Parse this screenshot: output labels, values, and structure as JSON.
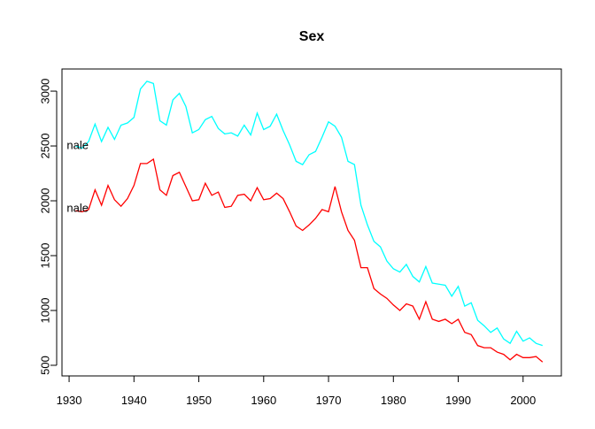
{
  "chart_data": {
    "type": "line",
    "title": "Sex",
    "x": [
      1931,
      1932,
      1933,
      1934,
      1935,
      1936,
      1937,
      1938,
      1939,
      1940,
      1941,
      1942,
      1943,
      1944,
      1945,
      1946,
      1947,
      1948,
      1949,
      1950,
      1951,
      1952,
      1953,
      1954,
      1955,
      1956,
      1957,
      1958,
      1959,
      1960,
      1961,
      1962,
      1963,
      1964,
      1965,
      1966,
      1967,
      1968,
      1969,
      1970,
      1971,
      1972,
      1973,
      1974,
      1975,
      1976,
      1977,
      1978,
      1979,
      1980,
      1981,
      1982,
      1983,
      1984,
      1985,
      1986,
      1987,
      1988,
      1989,
      1990,
      1991,
      1992,
      1993,
      1994,
      1995,
      1996,
      1997,
      1998,
      1999,
      2000,
      2001,
      2002,
      2003
    ],
    "series": [
      {
        "color": "#00ffff",
        "values": [
          2500,
          2480,
          2540,
          2700,
          2540,
          2670,
          2560,
          2690,
          2710,
          2760,
          3020,
          3090,
          3070,
          2730,
          2690,
          2920,
          2980,
          2860,
          2620,
          2650,
          2740,
          2770,
          2660,
          2610,
          2620,
          2590,
          2690,
          2600,
          2800,
          2650,
          2680,
          2790,
          2640,
          2510,
          2360,
          2330,
          2420,
          2450,
          2580,
          2720,
          2680,
          2580,
          2360,
          2330,
          1960,
          1780,
          1630,
          1580,
          1450,
          1380,
          1350,
          1420,
          1310,
          1260,
          1400,
          1250,
          1240,
          1230,
          1130,
          1220,
          1040,
          1070,
          910,
          860,
          800,
          840,
          740,
          700,
          810,
          720,
          750,
          700,
          680
        ]
      },
      {
        "color": "#ff0000",
        "values": [
          1910,
          1900,
          1920,
          2100,
          1960,
          2140,
          2010,
          1950,
          2020,
          2140,
          2340,
          2340,
          2380,
          2100,
          2050,
          2230,
          2260,
          2130,
          2000,
          2010,
          2160,
          2050,
          2080,
          1940,
          1950,
          2050,
          2060,
          2000,
          2120,
          2010,
          2020,
          2070,
          2020,
          1900,
          1770,
          1730,
          1780,
          1840,
          1920,
          1900,
          2130,
          1900,
          1730,
          1640,
          1390,
          1390,
          1200,
          1150,
          1110,
          1050,
          1000,
          1060,
          1040,
          920,
          1080,
          920,
          900,
          920,
          880,
          920,
          800,
          780,
          680,
          660,
          660,
          620,
          600,
          550,
          600,
          570,
          570,
          580,
          530
        ]
      }
    ],
    "annotations": [
      "nale",
      "nale"
    ],
    "xlim": [
      1928.9,
      2005.9
    ],
    "xticks": [
      1930,
      1940,
      1950,
      1960,
      1970,
      1980,
      1990,
      2000
    ],
    "ylim": [
      403,
      3202
    ],
    "yticks": [
      500,
      1000,
      1500,
      2000,
      2500,
      3000
    ]
  }
}
